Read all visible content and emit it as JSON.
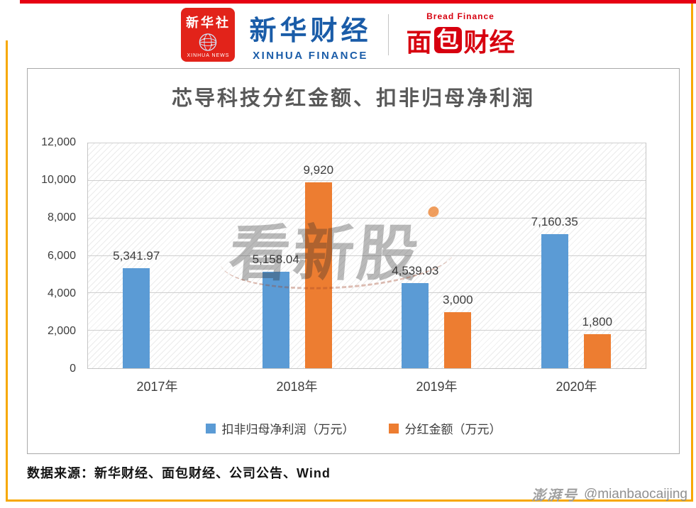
{
  "header": {
    "xinhua_agency": {
      "name": "新华社",
      "sub": "XINHUA NEWS"
    },
    "xinhua_finance": {
      "name": "新华财经",
      "sub": "XINHUA FINANCE"
    },
    "bread_finance": {
      "name_pre": "面",
      "name_boxed": "包",
      "name_post": "财经",
      "sub": "Bread Finance"
    }
  },
  "chart": {
    "title": "芯导科技分红金额、扣非归母净利润"
  },
  "chart_data": {
    "type": "bar",
    "title": "芯导科技分红金额、扣非归母净利润",
    "categories": [
      "2017年",
      "2018年",
      "2019年",
      "2020年"
    ],
    "series": [
      {
        "name": "扣非归母净利润（万元）",
        "color": "#5B9BD5",
        "values": [
          5341.97,
          5158.04,
          4539.03,
          7160.35
        ],
        "labels": [
          "5,341.97",
          "5,158.04",
          "4,539.03",
          "7,160.35"
        ]
      },
      {
        "name": "分红金额（万元）",
        "color": "#ED7D31",
        "values": [
          null,
          9920,
          3000,
          1800
        ],
        "labels": [
          "",
          "9,920",
          "3,000",
          "1,800"
        ]
      }
    ],
    "ylim": [
      0,
      12000
    ],
    "ytick_values": [
      0,
      2000,
      4000,
      6000,
      8000,
      10000,
      12000
    ],
    "ytick_labels": [
      "0",
      "2,000",
      "4,000",
      "6,000",
      "8,000",
      "10,000",
      "12,000"
    ],
    "grid": true,
    "legend_position": "bottom",
    "plot_hatch": true
  },
  "watermark": {
    "text": "看新股"
  },
  "source": "数据来源：新华财经、面包财经、公司公告、Wind",
  "footer": {
    "platform": "澎湃号",
    "handle": "@mianbaocaijing"
  },
  "colors": {
    "bar_blue": "#5B9BD5",
    "bar_orange": "#ED7D31",
    "frame_yellow": "#f7a800",
    "top_line_red": "#e60012",
    "xinhua_red": "#e2231a",
    "finance_blue": "#1a5ca8",
    "bread_red": "#d7000f",
    "title_gray": "#595959"
  }
}
